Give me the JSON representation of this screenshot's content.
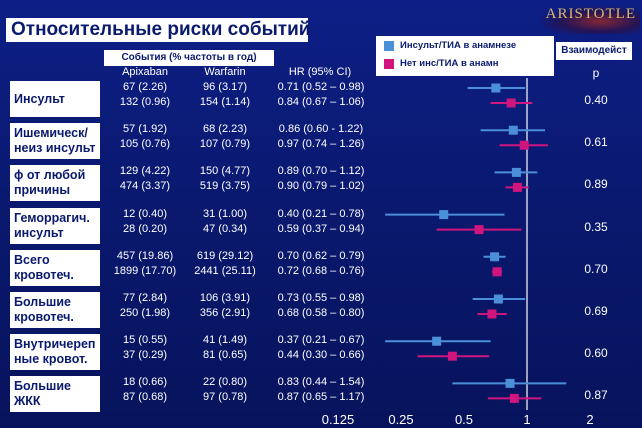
{
  "title": "Относительные риски событий",
  "brand": "ARISTOTLE",
  "events_header": "События (% частоты в год)",
  "columns": {
    "apixaban": "Apixaban",
    "warfarin": "Warfarin",
    "hr": "HR (95% CI)",
    "p": "p"
  },
  "interaction_label": "Взаимодейст",
  "legend": [
    {
      "label": "Инсульт/ТИА в анамнезе",
      "color": "#4a8fd8"
    },
    {
      "label": "Нет инс/ТИА в анамн",
      "color": "#d0157e"
    }
  ],
  "colors": {
    "tia": "#4a8fd8",
    "no_tia": "#d0157e",
    "reference_line": "#ffffff"
  },
  "chart_data": {
    "type": "forest",
    "x_scale": "log2",
    "xlim": [
      0.125,
      2
    ],
    "x_ticks": [
      0.125,
      0.25,
      0.5,
      1,
      2
    ],
    "x_tick_labels": [
      "0.125",
      "0.25",
      "0.5",
      "1",
      "2"
    ],
    "reference_line": 1,
    "groups": [
      {
        "label": "Инсульт",
        "p": "0.40",
        "rows": [
          {
            "series": "tia",
            "apixaban": "67 (2.26)",
            "warfarin": "96 (3.17)",
            "hr_text": "0.71 (0.52 – 0.98)",
            "hr": 0.71,
            "lo": 0.52,
            "hi": 0.98
          },
          {
            "series": "no_tia",
            "apixaban": "132 (0.96)",
            "warfarin": "154 (1.14)",
            "hr_text": "0.84 (0.67 – 1.06)",
            "hr": 0.84,
            "lo": 0.67,
            "hi": 1.06
          }
        ]
      },
      {
        "label": "Ишемическ/ неиз инсульт",
        "p": "0.61",
        "rows": [
          {
            "series": "tia",
            "apixaban": "57 (1.92)",
            "warfarin": "68 (2.23)",
            "hr_text": "0.86 (0.60 - 1.22)",
            "hr": 0.86,
            "lo": 0.6,
            "hi": 1.22
          },
          {
            "series": "no_tia",
            "apixaban": "105 (0.76)",
            "warfarin": "107 (0.79)",
            "hr_text": "0.97 (0.74 – 1.26)",
            "hr": 0.97,
            "lo": 0.74,
            "hi": 1.26
          }
        ]
      },
      {
        "label": "ɸ от любой причины",
        "p": "0.89",
        "rows": [
          {
            "series": "tia",
            "apixaban": "129 (4.22)",
            "warfarin": "150 (4.77)",
            "hr_text": "0.89 (0.70 – 1.12)",
            "hr": 0.89,
            "lo": 0.7,
            "hi": 1.12
          },
          {
            "series": "no_tia",
            "apixaban": "474 (3.37)",
            "warfarin": "519 (3.75)",
            "hr_text": "0.90 (0.79 – 1.02)",
            "hr": 0.9,
            "lo": 0.79,
            "hi": 1.02
          }
        ]
      },
      {
        "label": "Геморрагич. инсульт",
        "p": "0.35",
        "rows": [
          {
            "series": "tia",
            "apixaban": "12 (0.40)",
            "warfarin": "31 (1.00)",
            "hr_text": "0.40 (0.21 – 0.78)",
            "hr": 0.4,
            "lo": 0.21,
            "hi": 0.78
          },
          {
            "series": "no_tia",
            "apixaban": "28 (0.20)",
            "warfarin": "47 (0.34)",
            "hr_text": "0.59 (0.37 – 0.94)",
            "hr": 0.59,
            "lo": 0.37,
            "hi": 0.94
          }
        ]
      },
      {
        "label": "Всего кровотеч.",
        "p": "0.70",
        "rows": [
          {
            "series": "tia",
            "apixaban": "457 (19.86)",
            "warfarin": "619 (29.12)",
            "hr_text": "0.70 (0.62 – 0.79)",
            "hr": 0.7,
            "lo": 0.62,
            "hi": 0.79
          },
          {
            "series": "no_tia",
            "apixaban": "1899 (17.70)",
            "warfarin": "2441 (25.11)",
            "hr_text": "0.72 (0.68 – 0.76)",
            "hr": 0.72,
            "lo": 0.68,
            "hi": 0.76
          }
        ]
      },
      {
        "label": "Большие кровотеч.",
        "p": "0.69",
        "rows": [
          {
            "series": "tia",
            "apixaban": "77 (2.84)",
            "warfarin": "106 (3.91)",
            "hr_text": "0.73 (0.55 – 0.98)",
            "hr": 0.73,
            "lo": 0.55,
            "hi": 0.98
          },
          {
            "series": "no_tia",
            "apixaban": "250 (1.98)",
            "warfarin": "356 (2.91)",
            "hr_text": "0.68 (0.58 – 0.80)",
            "hr": 0.68,
            "lo": 0.58,
            "hi": 0.8
          }
        ]
      },
      {
        "label": "Внутричереп ные кровот.",
        "p": "0.60",
        "rows": [
          {
            "series": "tia",
            "apixaban": "15 (0.55)",
            "warfarin": "41 (1.49)",
            "hr_text": "0.37 (0.21 – 0.67)",
            "hr": 0.37,
            "lo": 0.21,
            "hi": 0.67
          },
          {
            "series": "no_tia",
            "apixaban": "37 (0.29)",
            "warfarin": "81 (0.65)",
            "hr_text": "0.44 (0.30 – 0.66)",
            "hr": 0.44,
            "lo": 0.3,
            "hi": 0.66
          }
        ]
      },
      {
        "label": "Большие ЖКК",
        "p": "0.87",
        "rows": [
          {
            "series": "tia",
            "apixaban": "18 (0.66)",
            "warfarin": "22 (0.80)",
            "hr_text": "0.83 (0.44 – 1.54)",
            "hr": 0.83,
            "lo": 0.44,
            "hi": 1.54
          },
          {
            "series": "no_tia",
            "apixaban": "87 (0.68)",
            "warfarin": "97 (0.78)",
            "hr_text": "0.87 (0.65 – 1.17)",
            "hr": 0.87,
            "lo": 0.65,
            "hi": 1.17
          }
        ]
      }
    ]
  }
}
